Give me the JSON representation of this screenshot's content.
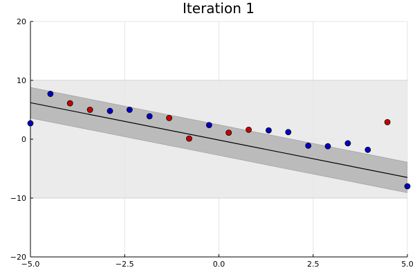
{
  "chart_data": {
    "type": "scatter",
    "title": "Iteration 1",
    "xlabel": "",
    "ylabel": "",
    "xlim": [
      -5,
      5
    ],
    "ylim": [
      -20,
      20
    ],
    "grid": true,
    "legend": "none",
    "x_ticks": [
      -5,
      -2.5,
      0,
      2.5,
      5
    ],
    "x_tick_labels": [
      "−5.0",
      "−2.5",
      "0.0",
      "2.5",
      "5.0"
    ],
    "y_ticks": [
      -20,
      -10,
      0,
      10,
      20
    ],
    "y_tick_labels": [
      "−20",
      "−10",
      "0",
      "10",
      "20"
    ],
    "outer_band": {
      "y_low": -10,
      "y_high": 10,
      "color": "#e8e8e8"
    },
    "fit_line": {
      "x": [
        -5,
        5
      ],
      "y": [
        6.2,
        -6.5
      ],
      "color": "#000000"
    },
    "fit_band": {
      "half_width": 2.6,
      "color": "#bbbbbb"
    },
    "colors": {
      "blue": "#0000c8",
      "red": "#c80000"
    },
    "points": [
      {
        "x": -5.0,
        "y": 2.7,
        "class": "blue"
      },
      {
        "x": -4.47,
        "y": 7.7,
        "class": "blue"
      },
      {
        "x": -3.95,
        "y": 6.1,
        "class": "red"
      },
      {
        "x": -3.42,
        "y": 5.0,
        "class": "red"
      },
      {
        "x": -2.89,
        "y": 4.8,
        "class": "blue"
      },
      {
        "x": -2.37,
        "y": 5.0,
        "class": "blue"
      },
      {
        "x": -1.84,
        "y": 3.9,
        "class": "blue"
      },
      {
        "x": -1.32,
        "y": 3.6,
        "class": "red"
      },
      {
        "x": -0.79,
        "y": 0.1,
        "class": "red"
      },
      {
        "x": -0.26,
        "y": 2.4,
        "class": "blue"
      },
      {
        "x": 0.26,
        "y": 1.1,
        "class": "red"
      },
      {
        "x": 0.79,
        "y": 1.6,
        "class": "red"
      },
      {
        "x": 1.32,
        "y": 1.5,
        "class": "blue"
      },
      {
        "x": 1.84,
        "y": 1.2,
        "class": "blue"
      },
      {
        "x": 2.37,
        "y": -1.1,
        "class": "blue"
      },
      {
        "x": 2.89,
        "y": -1.2,
        "class": "blue"
      },
      {
        "x": 3.42,
        "y": -0.7,
        "class": "blue"
      },
      {
        "x": 3.95,
        "y": -1.8,
        "class": "blue"
      },
      {
        "x": 4.47,
        "y": 2.9,
        "class": "red"
      },
      {
        "x": 5.0,
        "y": -8.0,
        "class": "blue"
      }
    ]
  }
}
